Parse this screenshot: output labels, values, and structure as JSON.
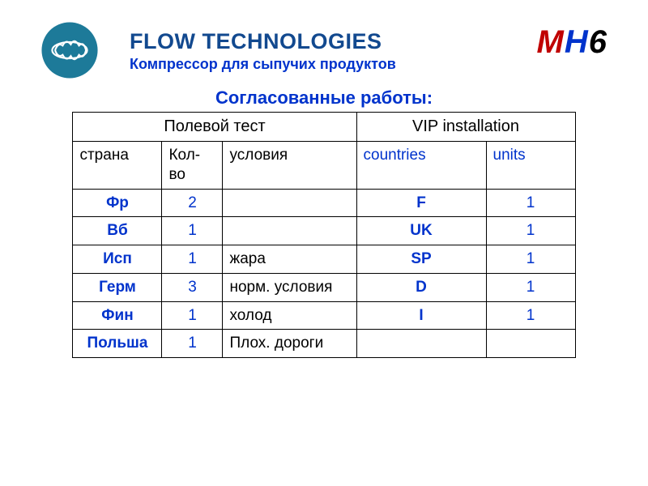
{
  "header": {
    "title": "FLOW TECHNOLOGIES",
    "subtitle": "Компрессор для сыпучих продуктов",
    "model": {
      "p1": "M",
      "p2": "H",
      "p3": "6"
    }
  },
  "section_title": "Согласованные работы:",
  "colors": {
    "title_color": "#12498f",
    "accent_blue": "#0033cc",
    "accent_red": "#c00000",
    "logo_circle": "#1d7a99",
    "table_border": "#000000",
    "background": "#ffffff"
  },
  "table": {
    "group_headers": {
      "left": "Полевой тест",
      "right": "VIP installation"
    },
    "sub_headers": {
      "country": "страна",
      "qty": "Кол-во",
      "cond": "условия",
      "vip_country": "countries",
      "vip_units": "units"
    },
    "rows": [
      {
        "country": "Фр",
        "qty": "2",
        "cond": "",
        "vip_country": "F",
        "vip_units": "1"
      },
      {
        "country": "Вб",
        "qty": "1",
        "cond": "",
        "vip_country": "UK",
        "vip_units": "1"
      },
      {
        "country": "Исп",
        "qty": "1",
        "cond": "жара",
        "vip_country": "SP",
        "vip_units": "1"
      },
      {
        "country": "Герм",
        "qty": "3",
        "cond": "норм. условия",
        "vip_country": "D",
        "vip_units": "1"
      },
      {
        "country": "Фин",
        "qty": "1",
        "cond": "холод",
        "vip_country": "I",
        "vip_units": "1"
      },
      {
        "country": "Польша",
        "qty": "1",
        "cond": "Плох. дороги",
        "vip_country": "",
        "vip_units": ""
      }
    ]
  }
}
